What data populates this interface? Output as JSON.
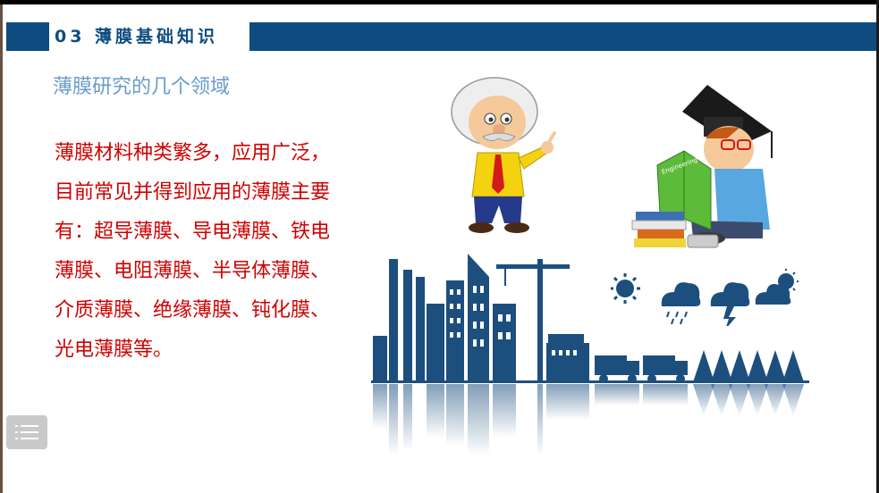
{
  "header": {
    "title": "03  薄膜基础知识"
  },
  "subtitle": "薄膜研究的几个领域",
  "body": {
    "paragraph": "薄膜材料种类繁多，应用广泛，目前常见并得到应用的薄膜主要有：超导薄膜、导电薄膜、铁电薄膜、电阻薄膜、半导体薄膜、介质薄膜、绝缘薄膜、钝化膜、光电薄膜等。"
  },
  "controls": {
    "menu_icon": "list-menu-icon"
  },
  "illustrations": {
    "scientist": "cartoon-scientist",
    "student": "graduate-student-reading",
    "book_label": "Engineering",
    "cityscape": "industrial-city-skyline",
    "weather": [
      "sun-icon",
      "rain-cloud-icon",
      "storm-cloud-icon",
      "sun-cloud-icon"
    ]
  },
  "colors": {
    "header_blue": "#0e4c80",
    "subtitle_blue": "#6a9bc9",
    "body_red": "#d00000",
    "city_blue": "#1d4f7e"
  }
}
